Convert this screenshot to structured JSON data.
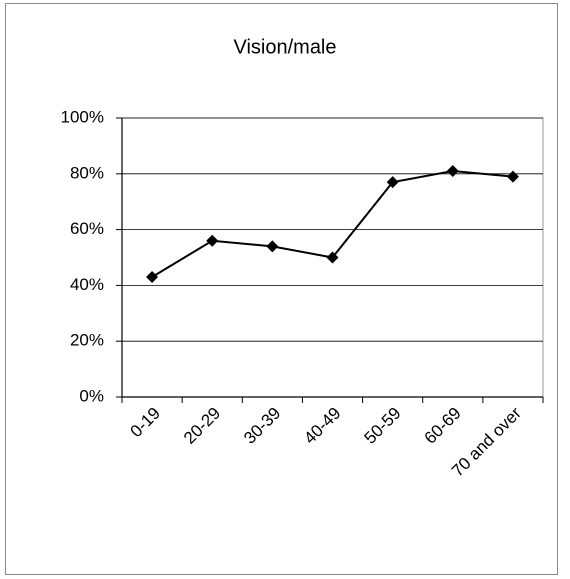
{
  "chart_data": {
    "type": "line",
    "title": "Vision/male",
    "categories": [
      "0-19",
      "20-29",
      "30-39",
      "40-49",
      "50-59",
      "60-69",
      "70 and over"
    ],
    "values": [
      43,
      56,
      54,
      50,
      77,
      81,
      79
    ],
    "color": "#000000",
    "ylim": [
      0,
      100
    ],
    "yticks": [
      {
        "value": 0,
        "label": "0%"
      },
      {
        "value": 20,
        "label": "20%"
      },
      {
        "value": 40,
        "label": "40%"
      },
      {
        "value": 60,
        "label": "60%"
      },
      {
        "value": 80,
        "label": "80%"
      },
      {
        "value": 100,
        "label": "100%"
      }
    ],
    "grid": true
  }
}
